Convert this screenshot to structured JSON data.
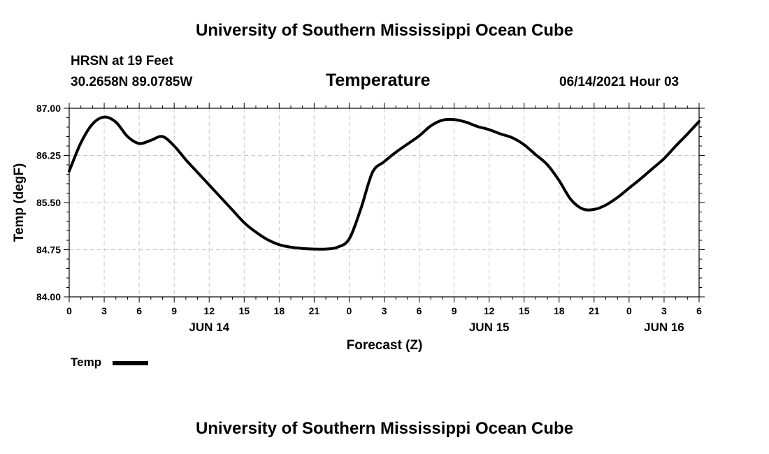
{
  "header": {
    "title": "University of Southern Mississippi Ocean Cube",
    "station": "HRSN at 19 Feet",
    "coords": "30.2658N  89.0785W",
    "plot_title": "Temperature",
    "datetime": "06/14/2021 Hour 03"
  },
  "footer": {
    "title": "University of Southern Mississippi Ocean Cube"
  },
  "legend": {
    "label": "Temp",
    "color": "#000000"
  },
  "chart_data": {
    "type": "line",
    "title": "Temperature",
    "xlabel": "Forecast (Z)",
    "ylabel": "Temp (degF)",
    "xlim": [
      0,
      54
    ],
    "ylim": [
      84.0,
      87.0
    ],
    "x_ticks": [
      0,
      3,
      6,
      9,
      12,
      15,
      18,
      21,
      24,
      27,
      30,
      33,
      36,
      39,
      42,
      45,
      48,
      51,
      54
    ],
    "x_tick_labels": [
      "0",
      "3",
      "6",
      "9",
      "12",
      "15",
      "18",
      "21",
      "0",
      "3",
      "6",
      "9",
      "12",
      "15",
      "18",
      "21",
      "0",
      "3",
      "6"
    ],
    "x_minor_step": 1,
    "y_ticks": [
      84.0,
      84.75,
      85.5,
      86.25,
      87.0
    ],
    "y_tick_labels": [
      "84.00",
      "84.75",
      "85.50",
      "86.25",
      "87.00"
    ],
    "y_minor_step": 0.15,
    "day_labels": [
      {
        "x": 12,
        "label": "JUN 14"
      },
      {
        "x": 36,
        "label": "JUN 15"
      },
      {
        "x": 51,
        "label": "JUN 16"
      }
    ],
    "grid": true,
    "series": [
      {
        "name": "Temp",
        "color": "#000000",
        "x": [
          0,
          1,
          2,
          3,
          4,
          5,
          6,
          7,
          8,
          9,
          10,
          11,
          12,
          13,
          14,
          15,
          16,
          17,
          18,
          19,
          20,
          21,
          22,
          23,
          24,
          25,
          26,
          27,
          28,
          29,
          30,
          31,
          32,
          33,
          34,
          35,
          36,
          37,
          38,
          39,
          40,
          41,
          42,
          43,
          44,
          45,
          46,
          47,
          48,
          49,
          50,
          51,
          52,
          53,
          54
        ],
        "values": [
          86.0,
          86.45,
          86.75,
          86.86,
          86.78,
          86.55,
          86.44,
          86.49,
          86.55,
          86.4,
          86.18,
          85.98,
          85.78,
          85.58,
          85.38,
          85.18,
          85.03,
          84.91,
          84.83,
          84.79,
          84.77,
          84.76,
          84.76,
          84.79,
          84.92,
          85.4,
          85.98,
          86.15,
          86.3,
          86.43,
          86.56,
          86.72,
          86.81,
          86.82,
          86.78,
          86.71,
          86.66,
          86.59,
          86.53,
          86.42,
          86.26,
          86.1,
          85.85,
          85.55,
          85.4,
          85.39,
          85.46,
          85.58,
          85.73,
          85.88,
          86.04,
          86.2,
          86.4,
          86.59,
          86.79
        ]
      }
    ]
  }
}
